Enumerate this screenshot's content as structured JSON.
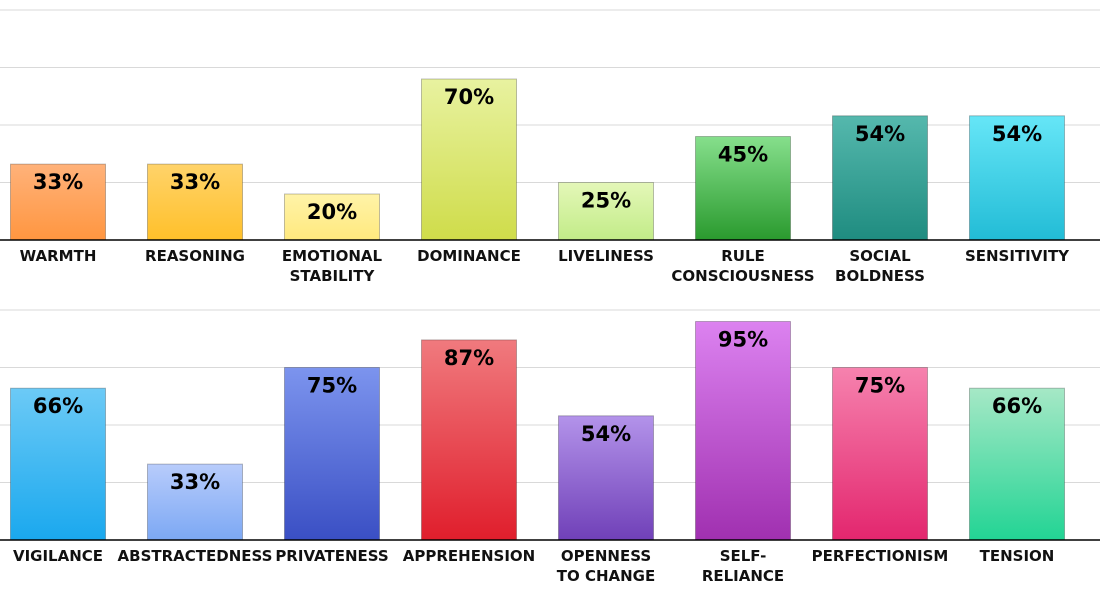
{
  "chart_data": [
    {
      "type": "bar",
      "ylim": [
        0,
        100
      ],
      "grid": true,
      "value_suffix": "%",
      "categories": [
        "WARMTH",
        "REASONING",
        "EMOTIONAL STABILITY",
        "DOMINANCE",
        "LIVELINESS",
        "RULE CONSCIOUSNESS",
        "SOCIAL BOLDNESS",
        "SENSITIVITY"
      ],
      "category_lines": [
        [
          "WARMTH"
        ],
        [
          "REASONING"
        ],
        [
          "EMOTIONAL",
          "STABILITY"
        ],
        [
          "DOMINANCE"
        ],
        [
          "LIVELINESS"
        ],
        [
          "RULE",
          "CONSCIOUSNESS"
        ],
        [
          "SOCIAL",
          "BOLDNESS"
        ],
        [
          "SENSITIVITY"
        ]
      ],
      "values": [
        33,
        33,
        20,
        70,
        25,
        45,
        54,
        54
      ],
      "labels": [
        "33%",
        "33%",
        "20%",
        "70%",
        "25%",
        "45%",
        "54%",
        "54%"
      ],
      "colors": [
        [
          "#ffb27a",
          "#ff9640"
        ],
        [
          "#ffd36a",
          "#ffc02a"
        ],
        [
          "#fff3a8",
          "#ffe97e"
        ],
        [
          "#e8f2a0",
          "#cfdc4a"
        ],
        [
          "#e4f7b8",
          "#c2ec88"
        ],
        [
          "#86df8c",
          "#2a9a2e"
        ],
        [
          "#55b8ad",
          "#1f8c80"
        ],
        [
          "#66e6f7",
          "#22bcd6"
        ]
      ]
    },
    {
      "type": "bar",
      "ylim": [
        0,
        100
      ],
      "grid": true,
      "value_suffix": "%",
      "categories": [
        "VIGILANCE",
        "ABSTRACTEDNESS",
        "PRIVATENESS",
        "APPREHENSION",
        "OPENNESS TO CHANGE",
        "SELF-RELIANCE",
        "PERFECTIONISM",
        "TENSION"
      ],
      "category_lines": [
        [
          "VIGILANCE"
        ],
        [
          "ABSTRACTEDNESS"
        ],
        [
          "PRIVATENESS"
        ],
        [
          "APPREHENSION"
        ],
        [
          "OPENNESS",
          "TO CHANGE"
        ],
        [
          "SELF-",
          "RELIANCE"
        ],
        [
          "PERFECTIONISM"
        ],
        [
          "TENSION"
        ]
      ],
      "values": [
        66,
        33,
        75,
        87,
        54,
        95,
        75,
        66
      ],
      "labels": [
        "66%",
        "33%",
        "75%",
        "87%",
        "54%",
        "95%",
        "75%",
        "66%"
      ],
      "colors": [
        [
          "#6ccaf6",
          "#1aa8ee"
        ],
        [
          "#b8ccfb",
          "#7ca8f4"
        ],
        [
          "#7c94ee",
          "#3a4fc4"
        ],
        [
          "#f07a7e",
          "#e01e2c"
        ],
        [
          "#b393ea",
          "#7040b8"
        ],
        [
          "#dc82f0",
          "#a030b0"
        ],
        [
          "#f682ae",
          "#e3266e"
        ],
        [
          "#a6e8c6",
          "#22d494"
        ]
      ]
    }
  ]
}
